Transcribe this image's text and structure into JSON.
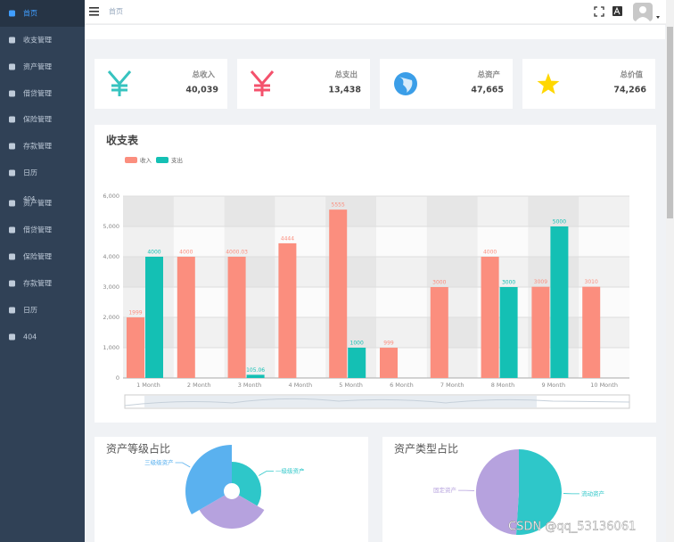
{
  "sidebar": {
    "items": [
      "首页",
      "收支管理",
      "资产管理",
      "借贷管理",
      "保险管理",
      "存款管理",
      "日历",
      "资产管理",
      "借贷管理",
      "保险管理",
      "存款管理",
      "日历",
      "404"
    ],
    "overlap_label": "404"
  },
  "header": {
    "breadcrumb": "首页"
  },
  "cards": [
    {
      "label": "总收入",
      "value": "40,039"
    },
    {
      "label": "总支出",
      "value": "13,438"
    },
    {
      "label": "总资产",
      "value": "47,665"
    },
    {
      "label": "总价值",
      "value": "74,266"
    }
  ],
  "chart_data": [
    {
      "type": "bar",
      "title": "收支表",
      "categories": [
        "1 Month",
        "2 Month",
        "3 Month",
        "4 Month",
        "5 Month",
        "6 Month",
        "7 Month",
        "8 Month",
        "9 Month",
        "10 Month"
      ],
      "series": [
        {
          "name": "收入",
          "color": "#fb8e7e",
          "values": [
            1999,
            4000,
            4000.03,
            4444,
            5555,
            999,
            3000,
            4000,
            3009,
            3010
          ]
        },
        {
          "name": "支出",
          "color": "#14c0b4",
          "values": [
            4000,
            null,
            105.06,
            null,
            1000,
            null,
            null,
            3000,
            5000,
            null
          ]
        }
      ],
      "ylim": [
        0,
        6000
      ],
      "yticks": [
        0,
        {
          "value": 1000,
          "label": "1,000"
        },
        {
          "value": 2000,
          "label": "2,000"
        },
        {
          "value": 3000,
          "label": "3,000"
        },
        {
          "value": 4000,
          "label": "4,000"
        },
        {
          "value": 5000,
          "label": "5,000"
        },
        {
          "value": 6000,
          "label": "6,000"
        }
      ],
      "grid": true
    },
    {
      "type": "pie",
      "title": "资产等级占比",
      "labels": [
        "一级级资产",
        null,
        "三级级资产"
      ],
      "values": [
        33,
        42,
        52
      ],
      "colors": [
        "#2ec7c9",
        "#b6a2de",
        "#5ab1ef"
      ],
      "rose": true
    },
    {
      "type": "pie",
      "title": "资产类型占比",
      "labels": [
        "流动资产",
        "固定资产"
      ],
      "values": [
        51,
        49
      ],
      "colors": [
        "#2ec7c9",
        "#b6a2de"
      ],
      "rose": false
    }
  ],
  "watermark": "CSDN @qq_53136061"
}
